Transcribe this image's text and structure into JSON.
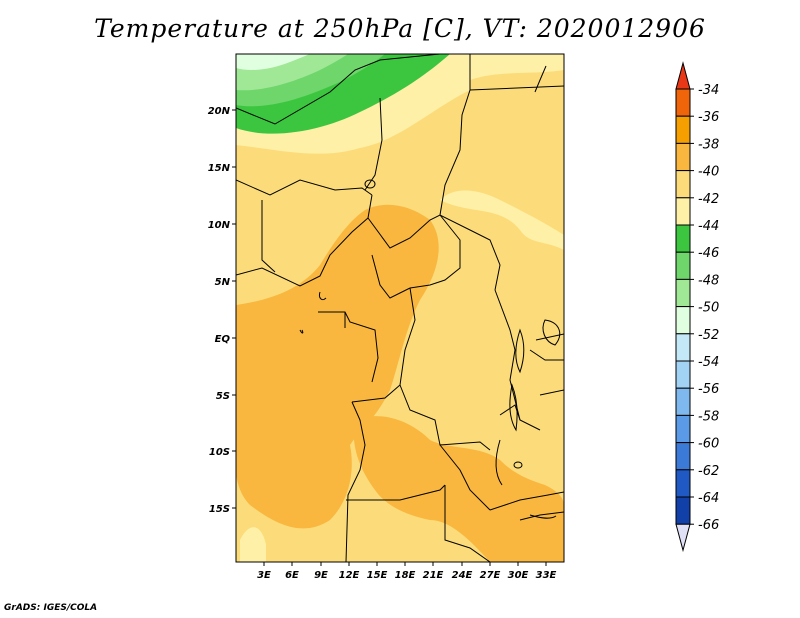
{
  "title": "Temperature at 250hPa [C], VT: 2020012906",
  "footer": "GrADS: IGES/COLA",
  "lat_ticks": [
    "20N",
    "15N",
    "10N",
    "5N",
    "EQ",
    "5S",
    "10S",
    "15S"
  ],
  "lon_ticks": [
    "3E",
    "6E",
    "9E",
    "12E",
    "15E",
    "18E",
    "21E",
    "24E",
    "27E",
    "30E",
    "33E"
  ],
  "colorbar": {
    "labels": [
      "-34",
      "-36",
      "-38",
      "-40",
      "-42",
      "-44",
      "-46",
      "-48",
      "-50",
      "-52",
      "-54",
      "-56",
      "-58",
      "-60",
      "-62",
      "-64",
      "-66"
    ],
    "colors": [
      "#f0640a",
      "#f5a000",
      "#f9b740",
      "#fcdc7a",
      "#fff0a8",
      "#3cc640",
      "#6ed66a",
      "#a0e896",
      "#e0ffe0",
      "#c4e8f8",
      "#a2d2f4",
      "#7eb8ee",
      "#5a9ae6",
      "#3c7ad8",
      "#2058c4",
      "#1040a8",
      "#0c1e78"
    ],
    "top_color": "#e83818",
    "bottom_color": "#e0e0f6"
  },
  "palette": {
    "warm_38": "#f9b740",
    "warm_40": "#fcdc7a",
    "warm_42": "#fff0a8",
    "green_44": "#3cc640",
    "green_46": "#6ed66a",
    "green_48": "#a0e896",
    "pale_50": "#e0ffe0"
  }
}
